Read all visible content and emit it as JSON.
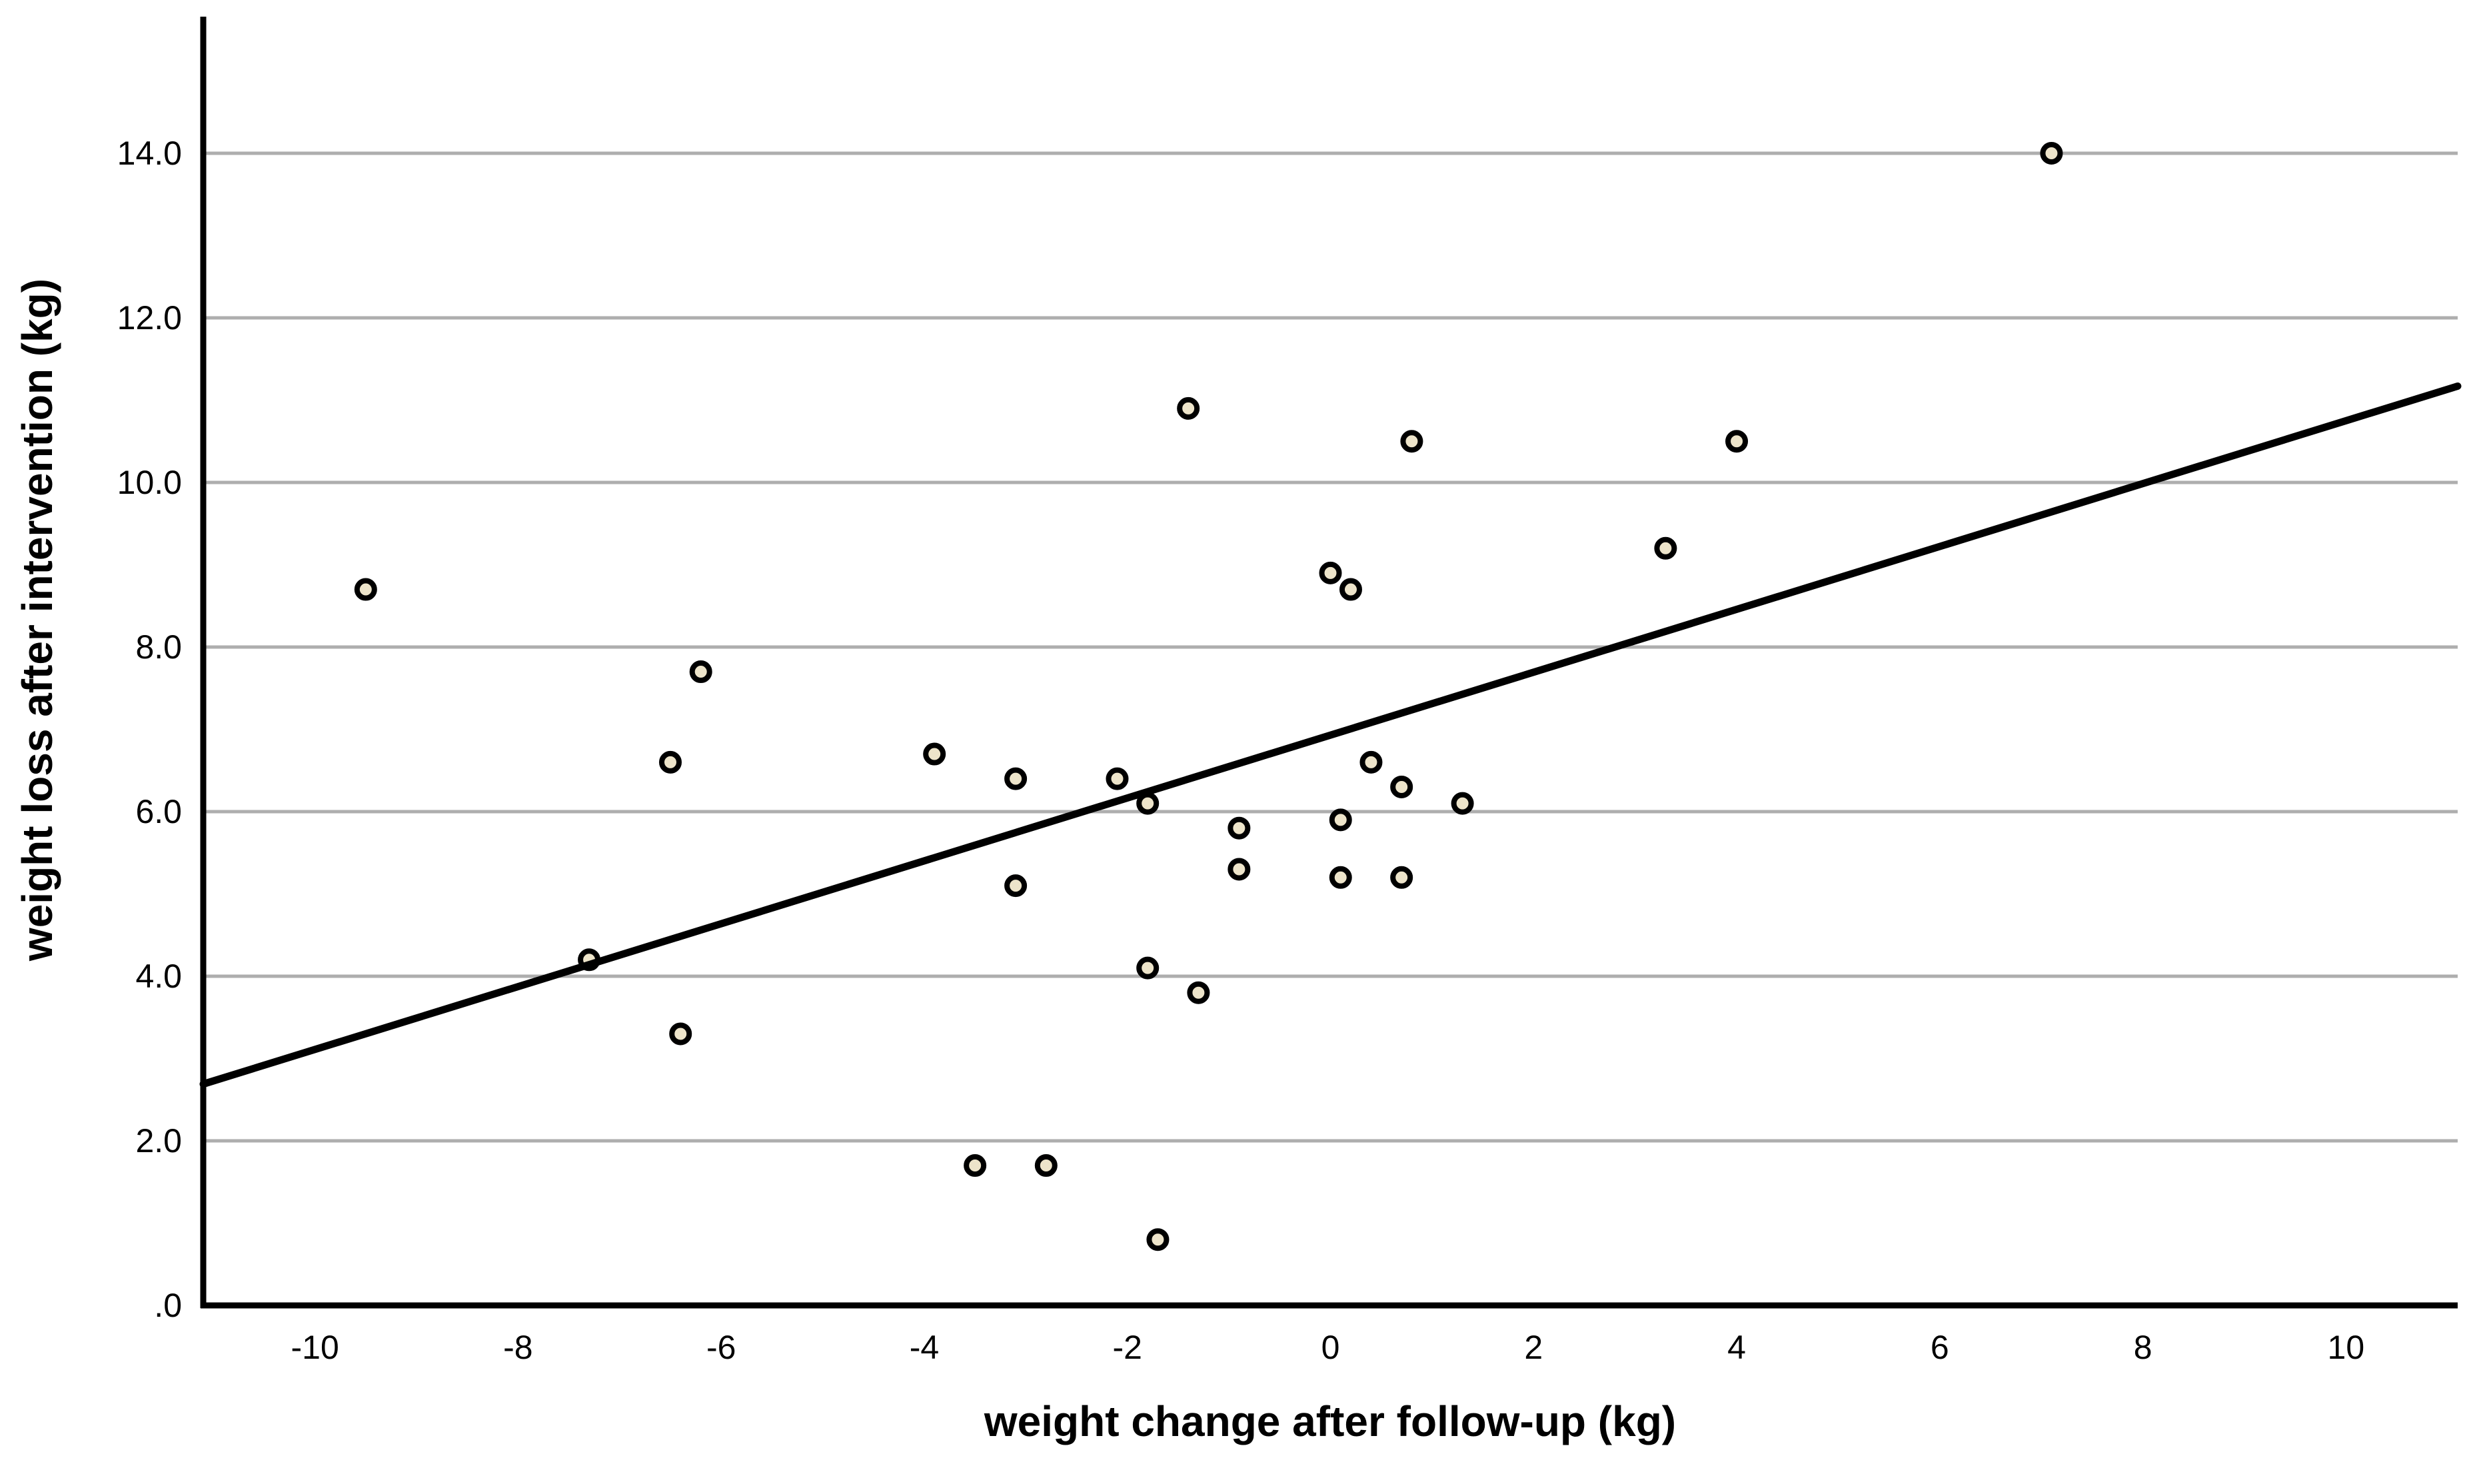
{
  "chart_data": {
    "type": "scatter",
    "title": "",
    "xlabel": "weight change after follow-up (kg)",
    "ylabel": "weight loss after intervention (kg)",
    "xlim": [
      -11.1,
      11.1
    ],
    "ylim": [
      0,
      15.66
    ],
    "x_ticks": [
      -10,
      -8,
      -6,
      -4,
      -2,
      0,
      2,
      4,
      6,
      8,
      10
    ],
    "x_tick_labels": [
      "-10",
      "-8",
      "-6",
      "-4",
      "-2",
      "0",
      "2",
      "4",
      "6",
      "8",
      "10"
    ],
    "y_ticks": [
      0,
      2,
      4,
      6,
      8,
      10,
      12,
      14
    ],
    "y_tick_labels": [
      ".0",
      "2.0",
      "4.0",
      "6.0",
      "8.0",
      "10.0",
      "12.0",
      "14.0"
    ],
    "grid": "horizontal-only",
    "legend": "none",
    "points": [
      [
        -9.5,
        8.7
      ],
      [
        -7.3,
        4.2
      ],
      [
        -6.5,
        6.6
      ],
      [
        -6.4,
        3.3
      ],
      [
        -6.2,
        7.7
      ],
      [
        -3.9,
        6.7
      ],
      [
        -3.5,
        1.7
      ],
      [
        -3.1,
        6.4
      ],
      [
        -3.1,
        5.1
      ],
      [
        -2.8,
        1.7
      ],
      [
        -2.1,
        6.4
      ],
      [
        -1.8,
        6.1
      ],
      [
        -1.8,
        4.1
      ],
      [
        -1.7,
        0.8
      ],
      [
        -1.4,
        10.9
      ],
      [
        -1.3,
        3.8
      ],
      [
        -0.9,
        5.8
      ],
      [
        -0.9,
        5.3
      ],
      [
        0.0,
        8.9
      ],
      [
        0.2,
        8.7
      ],
      [
        0.1,
        5.9
      ],
      [
        0.1,
        5.2
      ],
      [
        0.4,
        6.6
      ],
      [
        0.7,
        6.3
      ],
      [
        0.7,
        5.2
      ],
      [
        1.3,
        6.1
      ],
      [
        0.8,
        10.5
      ],
      [
        3.3,
        9.2
      ],
      [
        4.0,
        10.5
      ],
      [
        7.1,
        14.0
      ]
    ],
    "fit_line": {
      "slope": 0.382,
      "intercept": 6.93,
      "x_start": -11.1,
      "x_end": 11.1
    },
    "colors": {
      "background": "#ffffff",
      "point_fill": "#ede4ca",
      "point_stroke": "#000000",
      "grid": "#aeaeae",
      "axis": "#000000",
      "fit_line": "#000000",
      "text": "#000000"
    }
  }
}
